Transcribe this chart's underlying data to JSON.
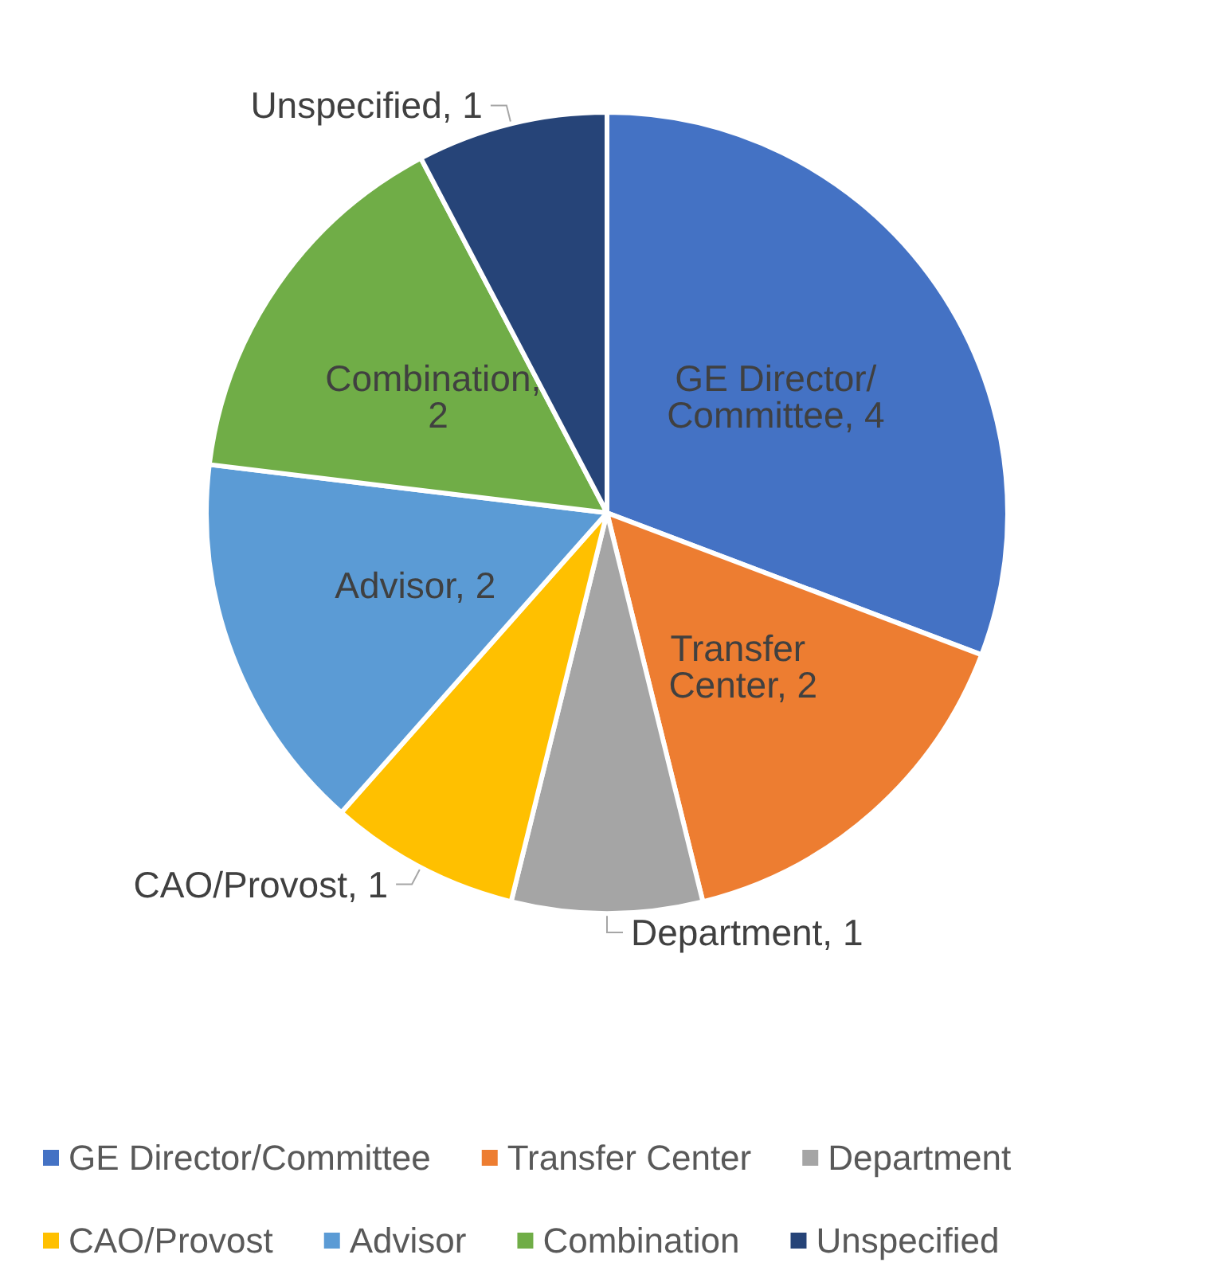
{
  "chart_data": {
    "type": "pie",
    "categories": [
      "GE Director/Committee",
      "Transfer Center",
      "Department",
      "CAO/Provost",
      "Advisor",
      "Combination",
      "Unspecified"
    ],
    "values": [
      4,
      2,
      1,
      1,
      2,
      2,
      1
    ],
    "colors": [
      "#4472c4",
      "#ed7d31",
      "#a5a5a5",
      "#ffc000",
      "#5b9bd5",
      "#70ad47",
      "#264478"
    ],
    "value_labels": [
      "GE Director/Committee, 4",
      "Transfer Center, 2",
      "Department, 1",
      "CAO/Provost, 1",
      "Advisor, 2",
      "Combination, 2",
      "Unspecified, 1"
    ],
    "legend": "bottom"
  }
}
